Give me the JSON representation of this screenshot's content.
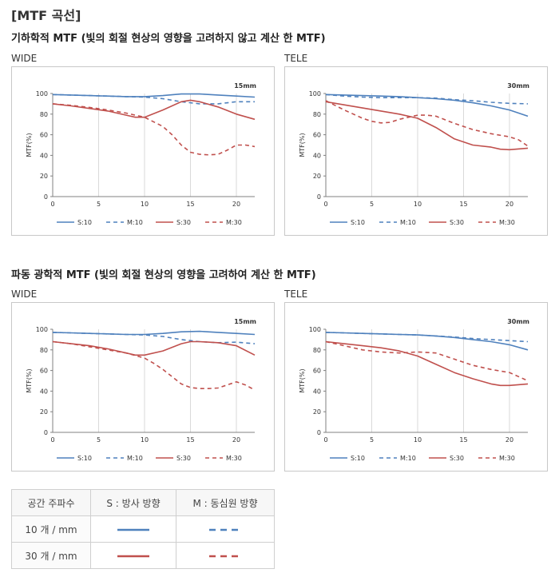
{
  "page": {
    "title": "[MTF 곡선]",
    "sections": [
      {
        "subtitle": "기하학적 MTF (빛의 회절 현상의 영향을 고려하지 않고 계산 한 MTF)"
      },
      {
        "subtitle": "파동 광학적 MTF (빛의 회절 현상의 영향을 고려하여 계산 한 MTF)"
      }
    ]
  },
  "colors": {
    "S10": "#4f81bd",
    "M10": "#4f81bd",
    "S30": "#c0504d",
    "M30": "#c0504d",
    "grid": "#d9d9d9"
  },
  "legend_table": {
    "header": [
      "공간 주파수",
      "S : 방사 방향",
      "M : 동심원 방향"
    ],
    "rows": [
      {
        "label": "10 개 / mm",
        "s_color": "#4f81bd",
        "m_color": "#4f81bd"
      },
      {
        "label": "30 개 / mm",
        "s_color": "#c0504d",
        "m_color": "#c0504d"
      }
    ]
  },
  "chart_data": [
    {
      "type": "line",
      "position_label": "WIDE",
      "annotation": "15mm",
      "xlabel": "",
      "ylabel": "MTF(%)",
      "xlim": [
        0,
        22
      ],
      "ylim": [
        0,
        100
      ],
      "xticks": [
        0,
        5,
        10,
        15,
        20
      ],
      "yticks": [
        0,
        20,
        40,
        60,
        80,
        100
      ],
      "grid": "vertical",
      "series": [
        {
          "name": "S:10",
          "color": "#4f81bd",
          "dash": "solid",
          "x": [
            0,
            2,
            4,
            6,
            8,
            10,
            12,
            14,
            16,
            18,
            20,
            22
          ],
          "y": [
            99,
            98.5,
            98,
            97.5,
            97,
            97,
            98,
            99.5,
            99.5,
            98.5,
            97.5,
            96.5
          ]
        },
        {
          "name": "M:10",
          "color": "#4f81bd",
          "dash": "dashed",
          "x": [
            0,
            2,
            4,
            6,
            8,
            10,
            12,
            14,
            16,
            18,
            20,
            22
          ],
          "y": [
            99,
            98.5,
            98,
            97.5,
            97,
            96.5,
            95,
            92,
            90,
            90,
            92,
            92
          ]
        },
        {
          "name": "S:30",
          "color": "#c0504d",
          "dash": "solid",
          "x": [
            0,
            2,
            4,
            6,
            8,
            9,
            10,
            12,
            14,
            15,
            16,
            18,
            20,
            22
          ],
          "y": [
            90,
            88,
            85.5,
            83,
            79,
            77,
            77,
            84,
            92,
            93.5,
            92,
            87,
            80,
            75
          ]
        },
        {
          "name": "M:30",
          "color": "#c0504d",
          "dash": "dashed",
          "x": [
            0,
            2,
            4,
            6,
            8,
            10,
            12,
            13,
            14,
            15,
            16,
            17,
            18,
            19,
            20,
            21,
            22
          ],
          "y": [
            90,
            88.5,
            86.5,
            84,
            81,
            77,
            68,
            60,
            50,
            43,
            41,
            40.5,
            41,
            45,
            50,
            50,
            48.5
          ]
        }
      ]
    },
    {
      "type": "line",
      "position_label": "TELE",
      "annotation": "30mm",
      "xlabel": "",
      "ylabel": "MTF(%)",
      "xlim": [
        0,
        22
      ],
      "ylim": [
        0,
        100
      ],
      "xticks": [
        0,
        5,
        10,
        15,
        20
      ],
      "yticks": [
        0,
        20,
        40,
        60,
        80,
        100
      ],
      "grid": "vertical",
      "series": [
        {
          "name": "S:10",
          "color": "#4f81bd",
          "dash": "solid",
          "x": [
            0,
            2,
            4,
            6,
            8,
            10,
            12,
            14,
            16,
            18,
            20,
            22
          ],
          "y": [
            99,
            98.5,
            98,
            97.5,
            97,
            96,
            95,
            93.5,
            91,
            88,
            84,
            78
          ]
        },
        {
          "name": "M:10",
          "color": "#4f81bd",
          "dash": "dashed",
          "x": [
            0,
            2,
            4,
            6,
            8,
            10,
            12,
            14,
            16,
            18,
            20,
            22
          ],
          "y": [
            99,
            97.5,
            96.5,
            96,
            96,
            96,
            95.5,
            94,
            93,
            91.5,
            90.5,
            90
          ]
        },
        {
          "name": "S:30",
          "color": "#c0504d",
          "dash": "solid",
          "x": [
            0,
            2,
            4,
            6,
            8,
            10,
            12,
            14,
            15,
            16,
            18,
            19,
            20,
            22
          ],
          "y": [
            92,
            89,
            86,
            83,
            80,
            76,
            67,
            56,
            53,
            50,
            48,
            46,
            45.5,
            47
          ]
        },
        {
          "name": "M:30",
          "color": "#c0504d",
          "dash": "dashed",
          "x": [
            0,
            2,
            4,
            5,
            6,
            7,
            8,
            10,
            11,
            12,
            14,
            16,
            18,
            20,
            21,
            22
          ],
          "y": [
            93,
            84,
            76,
            73,
            71.5,
            72,
            75,
            79,
            79,
            78,
            71,
            65,
            61,
            58,
            55,
            49
          ]
        }
      ]
    },
    {
      "type": "line",
      "position_label": "WIDE",
      "annotation": "15mm",
      "xlabel": "",
      "ylabel": "MTF(%)",
      "xlim": [
        0,
        22
      ],
      "ylim": [
        0,
        100
      ],
      "xticks": [
        0,
        5,
        10,
        15,
        20
      ],
      "yticks": [
        0,
        20,
        40,
        60,
        80,
        100
      ],
      "grid": "vertical",
      "series": [
        {
          "name": "S:10",
          "color": "#4f81bd",
          "dash": "solid",
          "x": [
            0,
            2,
            4,
            6,
            8,
            10,
            12,
            14,
            16,
            18,
            20,
            22
          ],
          "y": [
            97,
            96.5,
            96,
            95.5,
            95,
            95,
            96,
            97.5,
            98,
            97,
            96,
            95
          ]
        },
        {
          "name": "M:10",
          "color": "#4f81bd",
          "dash": "dashed",
          "x": [
            0,
            2,
            4,
            6,
            8,
            10,
            12,
            14,
            16,
            18,
            20,
            22
          ],
          "y": [
            97,
            96.5,
            96,
            95.5,
            95,
            94.5,
            93,
            90,
            88,
            87,
            87.5,
            86
          ]
        },
        {
          "name": "S:30",
          "color": "#c0504d",
          "dash": "solid",
          "x": [
            0,
            2,
            4,
            6,
            8,
            9,
            10,
            12,
            14,
            15,
            16,
            18,
            20,
            22
          ],
          "y": [
            88,
            86,
            84,
            81,
            77,
            75,
            75,
            79,
            86,
            88,
            88,
            87,
            84,
            75
          ]
        },
        {
          "name": "M:30",
          "color": "#c0504d",
          "dash": "dashed",
          "x": [
            0,
            2,
            4,
            6,
            8,
            10,
            11,
            12,
            13,
            14,
            15,
            16,
            17,
            18,
            19,
            20,
            21,
            22
          ],
          "y": [
            88,
            86,
            83,
            80,
            77,
            72,
            67,
            61,
            54,
            47,
            43.5,
            42.5,
            42.5,
            43,
            46,
            49,
            46,
            41
          ]
        }
      ]
    },
    {
      "type": "line",
      "position_label": "TELE",
      "annotation": "30mm",
      "xlabel": "",
      "ylabel": "MTF(%)",
      "xlim": [
        0,
        22
      ],
      "ylim": [
        0,
        100
      ],
      "xticks": [
        0,
        5,
        10,
        15,
        20
      ],
      "yticks": [
        0,
        20,
        40,
        60,
        80,
        100
      ],
      "grid": "vertical",
      "series": [
        {
          "name": "S:10",
          "color": "#4f81bd",
          "dash": "solid",
          "x": [
            0,
            2,
            4,
            6,
            8,
            10,
            12,
            14,
            16,
            18,
            20,
            22
          ],
          "y": [
            97,
            96.5,
            96,
            95.5,
            95,
            94.5,
            93.5,
            92,
            90,
            88,
            85,
            80
          ]
        },
        {
          "name": "M:10",
          "color": "#4f81bd",
          "dash": "dashed",
          "x": [
            0,
            2,
            4,
            6,
            8,
            10,
            12,
            14,
            16,
            18,
            20,
            22
          ],
          "y": [
            97,
            96.5,
            96,
            95.5,
            95,
            94.5,
            93.5,
            92.5,
            91,
            90,
            89,
            88
          ]
        },
        {
          "name": "S:30",
          "color": "#c0504d",
          "dash": "solid",
          "x": [
            0,
            2,
            4,
            6,
            8,
            10,
            12,
            14,
            16,
            18,
            19,
            20,
            22
          ],
          "y": [
            88,
            86,
            84,
            82,
            79,
            74,
            66,
            58,
            52,
            47,
            45.5,
            45.5,
            47
          ]
        },
        {
          "name": "M:30",
          "color": "#c0504d",
          "dash": "dashed",
          "x": [
            0,
            2,
            4,
            6,
            8,
            10,
            12,
            14,
            16,
            18,
            20,
            21,
            22
          ],
          "y": [
            88,
            84,
            80,
            78,
            77,
            78,
            77,
            71,
            65,
            61,
            58,
            54,
            50
          ]
        }
      ]
    }
  ]
}
